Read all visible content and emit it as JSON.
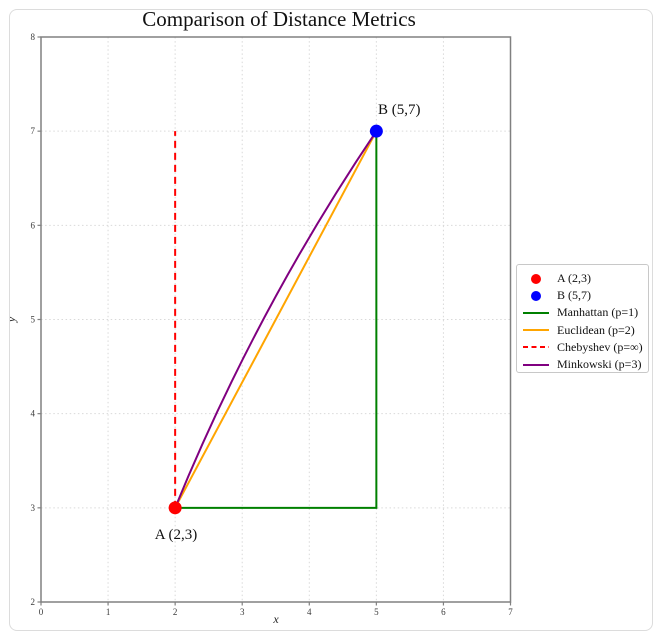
{
  "chart_data": {
    "type": "line",
    "title": "Comparison of Distance Metrics",
    "xlabel": "x",
    "ylabel": "y",
    "xlim": [
      0,
      7
    ],
    "ylim": [
      2,
      8
    ],
    "xticks": [
      0,
      1,
      2,
      3,
      4,
      5,
      6,
      7
    ],
    "yticks": [
      2,
      3,
      4,
      5,
      6,
      7,
      8
    ],
    "grid": "dotted",
    "colors": {
      "grid": "#d9d9d9",
      "spine": "#808080",
      "red": "#ff0000",
      "blue": "#0000ff",
      "green": "#008000",
      "orange": "#ffa500",
      "purple": "#800080"
    },
    "points": [
      {
        "id": "a",
        "label": "A",
        "xy": [
          2,
          3
        ],
        "color": "#ff0000",
        "annotation": "A (2,3)"
      },
      {
        "id": "b",
        "label": "B",
        "xy": [
          5,
          7
        ],
        "color": "#0000ff",
        "annotation": "B (5,7)"
      }
    ],
    "series": [
      {
        "id": "manhattan",
        "name": "Manhattan (p=1)",
        "color": "#008000",
        "style": "solid",
        "points": [
          [
            2,
            3
          ],
          [
            5,
            3
          ],
          [
            5,
            7
          ]
        ]
      },
      {
        "id": "euclidean",
        "name": "Euclidean (p=2)",
        "color": "#ffa500",
        "style": "solid",
        "points": [
          [
            2,
            3
          ],
          [
            5,
            7
          ]
        ]
      },
      {
        "id": "chebyshev",
        "name": "Chebyshev (p=∞)",
        "color": "#ff0000",
        "style": "dashed",
        "points": [
          [
            2,
            3
          ],
          [
            2,
            7
          ]
        ]
      },
      {
        "id": "minkowski",
        "name": "Minkowski (p=3)",
        "color": "#800080",
        "style": "solid",
        "curve": {
          "from": [
            2,
            3
          ],
          "control": [
            3.21,
            5.11
          ],
          "to": [
            5,
            7
          ]
        }
      }
    ],
    "legend": {
      "position": "center right, outside axes",
      "items": [
        {
          "marker": "dot",
          "color": "#ff0000",
          "label": "A (2,3)"
        },
        {
          "marker": "dot",
          "color": "#0000ff",
          "label": "B (5,7)"
        },
        {
          "marker": "line",
          "color": "#008000",
          "label": "Manhattan (p=1)"
        },
        {
          "marker": "line",
          "color": "#ffa500",
          "label": "Euclidean (p=2)"
        },
        {
          "marker": "dashed-line",
          "color": "#ff0000",
          "label": "Chebyshev (p=∞)"
        },
        {
          "marker": "line",
          "color": "#800080",
          "label": "Minkowski (p=3)"
        }
      ]
    }
  }
}
